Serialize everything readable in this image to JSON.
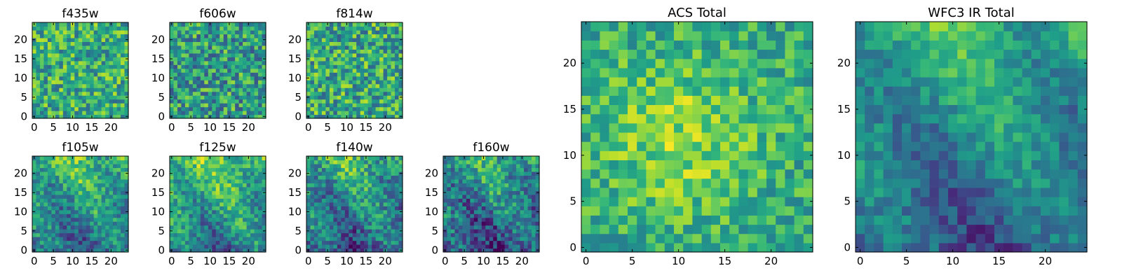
{
  "chart_data": [
    {
      "type": "heatmap",
      "title": "f435w",
      "grid": false,
      "legend": "none",
      "xlim": [
        0,
        25
      ],
      "ylim": [
        0,
        25
      ],
      "x_ticks": [
        0,
        5,
        10,
        15,
        20
      ],
      "y_ticks": [
        0,
        5,
        10,
        15,
        20
      ],
      "seed": 11,
      "trend": "flat",
      "base": 0.62,
      "noise": 0.28,
      "colormap": "viridis"
    },
    {
      "type": "heatmap",
      "title": "f606w",
      "grid": false,
      "legend": "none",
      "xlim": [
        0,
        25
      ],
      "ylim": [
        0,
        25
      ],
      "x_ticks": [
        0,
        5,
        10,
        15,
        20
      ],
      "y_ticks": [
        0,
        5,
        10,
        15,
        20
      ],
      "seed": 23,
      "trend": "flat",
      "base": 0.55,
      "noise": 0.3,
      "colormap": "viridis"
    },
    {
      "type": "heatmap",
      "title": "f814w",
      "grid": false,
      "legend": "none",
      "xlim": [
        0,
        25
      ],
      "ylim": [
        0,
        25
      ],
      "x_ticks": [
        0,
        5,
        10,
        15,
        20
      ],
      "y_ticks": [
        0,
        5,
        10,
        15,
        20
      ],
      "seed": 37,
      "trend": "flat",
      "base": 0.6,
      "noise": 0.3,
      "colormap": "viridis"
    },
    {
      "type": "heatmap",
      "title": "f105w",
      "grid": false,
      "legend": "none",
      "xlim": [
        0,
        25
      ],
      "ylim": [
        0,
        25
      ],
      "x_ticks": [
        0,
        5,
        10,
        15,
        20
      ],
      "y_ticks": [
        0,
        5,
        10,
        15,
        20
      ],
      "seed": 41,
      "trend": "top",
      "base": 0.5,
      "noise": 0.2,
      "colormap": "viridis"
    },
    {
      "type": "heatmap",
      "title": "f125w",
      "grid": false,
      "legend": "none",
      "xlim": [
        0,
        25
      ],
      "ylim": [
        0,
        25
      ],
      "x_ticks": [
        0,
        5,
        10,
        15,
        20
      ],
      "y_ticks": [
        0,
        5,
        10,
        15,
        20
      ],
      "seed": 53,
      "trend": "top",
      "base": 0.55,
      "noise": 0.2,
      "colormap": "viridis"
    },
    {
      "type": "heatmap",
      "title": "f140w",
      "grid": false,
      "legend": "none",
      "xlim": [
        0,
        25
      ],
      "ylim": [
        0,
        25
      ],
      "x_ticks": [
        0,
        5,
        10,
        15,
        20
      ],
      "y_ticks": [
        0,
        5,
        10,
        15,
        20
      ],
      "seed": 67,
      "trend": "top",
      "base": 0.45,
      "noise": 0.22,
      "colormap": "viridis"
    },
    {
      "type": "heatmap",
      "title": "f160w",
      "grid": false,
      "legend": "none",
      "xlim": [
        0,
        25
      ],
      "ylim": [
        0,
        25
      ],
      "x_ticks": [
        0,
        5,
        10,
        15,
        20
      ],
      "y_ticks": [
        0,
        5,
        10,
        15,
        20
      ],
      "seed": 79,
      "trend": "top",
      "base": 0.4,
      "noise": 0.24,
      "colormap": "viridis"
    },
    {
      "type": "heatmap",
      "title": "ACS Total",
      "grid": false,
      "legend": "none",
      "xlim": [
        0,
        25
      ],
      "ylim": [
        0,
        25
      ],
      "x_ticks": [
        0,
        5,
        10,
        15,
        20
      ],
      "y_ticks": [
        0,
        5,
        10,
        15,
        20
      ],
      "seed": 97,
      "trend": "center",
      "base": 0.6,
      "noise": 0.2,
      "colormap": "viridis"
    },
    {
      "type": "heatmap",
      "title": "WFC3 IR Total",
      "grid": false,
      "legend": "none",
      "xlim": [
        0,
        25
      ],
      "ylim": [
        0,
        25
      ],
      "x_ticks": [
        0,
        5,
        10,
        15,
        20
      ],
      "y_ticks": [
        0,
        5,
        10,
        15,
        20
      ],
      "seed": 113,
      "trend": "top",
      "base": 0.45,
      "noise": 0.14,
      "colormap": "viridis"
    }
  ]
}
